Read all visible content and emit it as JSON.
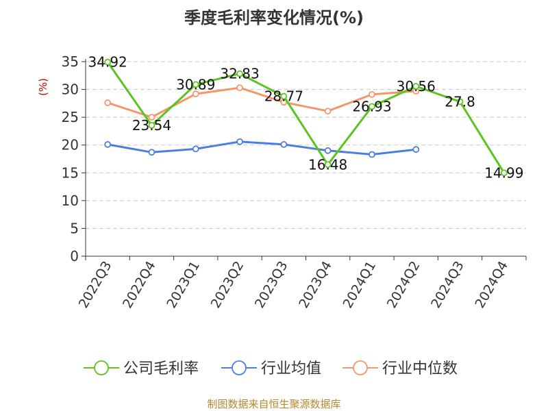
{
  "chart_data": {
    "type": "line",
    "title": "季度毛利率变化情况(%)",
    "ylabel": "(%)",
    "xlabel": "",
    "ylim": [
      0,
      35
    ],
    "yticks": [
      0,
      5,
      10,
      15,
      20,
      25,
      30,
      35
    ],
    "categories": [
      "2022Q3",
      "2022Q4",
      "2023Q1",
      "2023Q2",
      "2023Q3",
      "2023Q4",
      "2024Q1",
      "2024Q2",
      "2024Q3",
      "2024Q4"
    ],
    "grid": "horizontal-dashed",
    "legend_position": "bottom",
    "series": [
      {
        "name": "公司毛利率",
        "color": "#5bc51f",
        "values": [
          34.92,
          23.54,
          30.89,
          32.83,
          28.77,
          16.48,
          26.93,
          30.56,
          27.8,
          14.99
        ],
        "labels": [
          "34.92",
          "23.54",
          "30.89",
          "32.83",
          "28.77",
          "16.48",
          "26.93",
          "30.56",
          "27.8",
          "14.99"
        ]
      },
      {
        "name": "行业均值",
        "color": "#4a7fe0",
        "values": [
          20.1,
          18.7,
          19.3,
          20.6,
          20.1,
          19.0,
          18.3,
          19.2,
          null,
          null
        ]
      },
      {
        "name": "行业中位数",
        "color": "#f7956a",
        "values": [
          27.6,
          25.0,
          29.2,
          30.3,
          27.7,
          26.1,
          29.1,
          29.7,
          null,
          null
        ]
      }
    ]
  },
  "source": "制图数据来自恒生聚源数据库"
}
